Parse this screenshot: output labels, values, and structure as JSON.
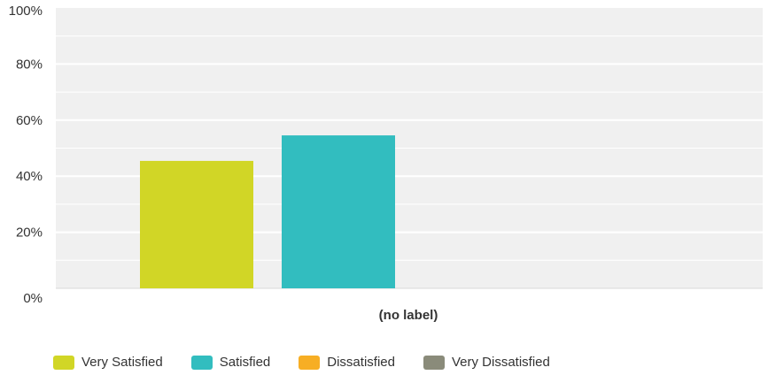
{
  "chart_data": {
    "type": "bar",
    "categories": [
      "(no label)"
    ],
    "series": [
      {
        "name": "Very Satisfied",
        "values": [
          45.45
        ],
        "color": "#d1d626"
      },
      {
        "name": "Satisfied",
        "values": [
          54.55
        ],
        "color": "#32bdbf"
      },
      {
        "name": "Dissatisfied",
        "values": [
          0
        ],
        "color": "#f7ae24"
      },
      {
        "name": "Very Dissatisfied",
        "values": [
          0
        ],
        "color": "#8a8b7a"
      }
    ],
    "yticks": [
      "0%",
      "20%",
      "40%",
      "60%",
      "80%",
      "100%"
    ],
    "ylim": [
      0,
      100
    ],
    "grid": true,
    "legend_position": "bottom",
    "plot_background": "#f0f0f0"
  }
}
